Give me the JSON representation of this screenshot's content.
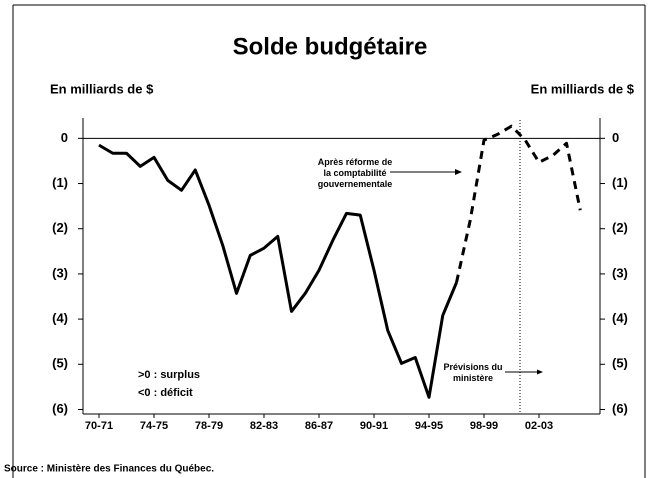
{
  "chart_data": {
    "type": "line",
    "title": "Solde budgétaire",
    "y_label_left": "En milliards de $",
    "y_label_right": "En milliards de $",
    "annotations": [
      "Après réforme de la comptabilité gouvernementale",
      "Prévisions du ministère",
      ">0 : surplus",
      "<0 : déficit"
    ],
    "source": "Source : Ministère des Finances du Québec.",
    "categories": [
      "70-71",
      null,
      null,
      null,
      "74-75",
      null,
      null,
      null,
      "78-79",
      null,
      null,
      null,
      "82-83",
      null,
      null,
      null,
      "86-87",
      null,
      null,
      null,
      "90-91",
      null,
      null,
      null,
      "94-95",
      null,
      null,
      null,
      "98-99",
      null,
      null,
      null,
      "02-03",
      null,
      null,
      null
    ],
    "series": [
      {
        "color": "#000000",
        "style": "solid",
        "values": [
          -0.15,
          -0.33,
          -0.33,
          -0.62,
          -0.42,
          -0.93,
          -1.15,
          -0.7,
          -1.48,
          -2.37,
          -3.43,
          -2.59,
          -2.43,
          -2.17,
          -3.83,
          -3.43,
          -2.92,
          -2.26,
          -1.66,
          -1.7,
          -2.92,
          -4.25,
          -4.98,
          -4.85,
          -5.73,
          -3.92,
          -3.19,
          null,
          null,
          null,
          null,
          null,
          null,
          null,
          null,
          null
        ]
      },
      {
        "color": "#000000",
        "style": "dashed",
        "values": [
          null,
          null,
          null,
          null,
          null,
          null,
          null,
          null,
          null,
          null,
          null,
          null,
          null,
          null,
          null,
          null,
          null,
          null,
          null,
          null,
          null,
          null,
          null,
          null,
          null,
          null,
          -3.19,
          -1.81,
          -0.04,
          0.09,
          0.27,
          -0.04,
          -0.53,
          -0.38,
          -0.11,
          -1.59
        ]
      }
    ],
    "ylim": [
      -6.1,
      0.45
    ],
    "yticks": [
      0,
      {
        "value": -1,
        "label": "(1)"
      },
      {
        "value": -2,
        "label": "(2)"
      },
      {
        "value": -3,
        "label": "(3)"
      },
      {
        "value": -4,
        "label": "(4)"
      },
      {
        "value": -5,
        "label": "(5)"
      },
      {
        "value": -6,
        "label": "(6)"
      }
    ]
  }
}
